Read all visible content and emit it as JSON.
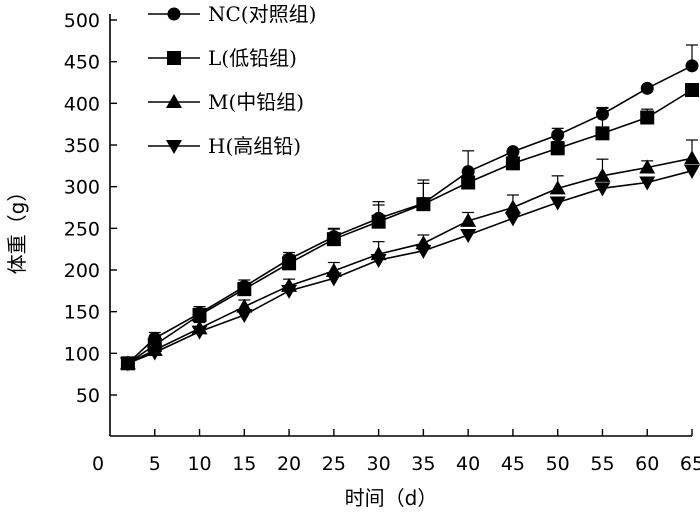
{
  "chart_data": {
    "type": "line",
    "title": "",
    "xlabel": "时间（d）",
    "ylabel": "体重（g）",
    "xlim": [
      0,
      65
    ],
    "ylim": [
      50,
      500
    ],
    "x_ticks": [
      0,
      5,
      10,
      15,
      20,
      25,
      30,
      35,
      40,
      45,
      50,
      55,
      60,
      65
    ],
    "y_ticks": [
      50,
      100,
      150,
      200,
      250,
      300,
      350,
      400,
      450,
      500
    ],
    "grid": false,
    "legend_position": "top-left",
    "x": [
      2,
      5,
      10,
      15,
      20,
      25,
      30,
      35,
      40,
      45,
      50,
      55,
      60,
      65
    ],
    "series": [
      {
        "name": "NC(对照组)",
        "marker": "circle",
        "values": [
          88,
          118,
          148,
          180,
          213,
          240,
          262,
          280,
          318,
          342,
          362,
          387,
          418,
          445
        ],
        "errors": [
          0,
          7,
          8,
          8,
          8,
          10,
          20,
          28,
          25,
          0,
          8,
          8,
          0,
          25
        ]
      },
      {
        "name": "L(低铅组)",
        "marker": "square",
        "values": [
          88,
          110,
          146,
          177,
          208,
          237,
          258,
          279,
          305,
          328,
          346,
          364,
          383,
          416
        ],
        "errors": [
          0,
          8,
          10,
          8,
          10,
          12,
          20,
          25,
          0,
          0,
          8,
          30,
          10,
          0
        ]
      },
      {
        "name": "M(中铅组)",
        "marker": "triangle-up",
        "values": [
          88,
          104,
          130,
          156,
          181,
          199,
          219,
          232,
          259,
          275,
          298,
          313,
          323,
          334
        ],
        "errors": [
          0,
          5,
          7,
          8,
          8,
          10,
          15,
          10,
          10,
          15,
          15,
          20,
          8,
          22
        ]
      },
      {
        "name": "H(高组铅)",
        "marker": "triangle-down",
        "values": [
          88,
          101,
          126,
          146,
          175,
          190,
          212,
          223,
          242,
          262,
          281,
          298,
          305,
          319
        ],
        "errors": [
          0,
          0,
          0,
          0,
          0,
          0,
          0,
          0,
          0,
          0,
          0,
          0,
          0,
          0
        ]
      }
    ]
  }
}
